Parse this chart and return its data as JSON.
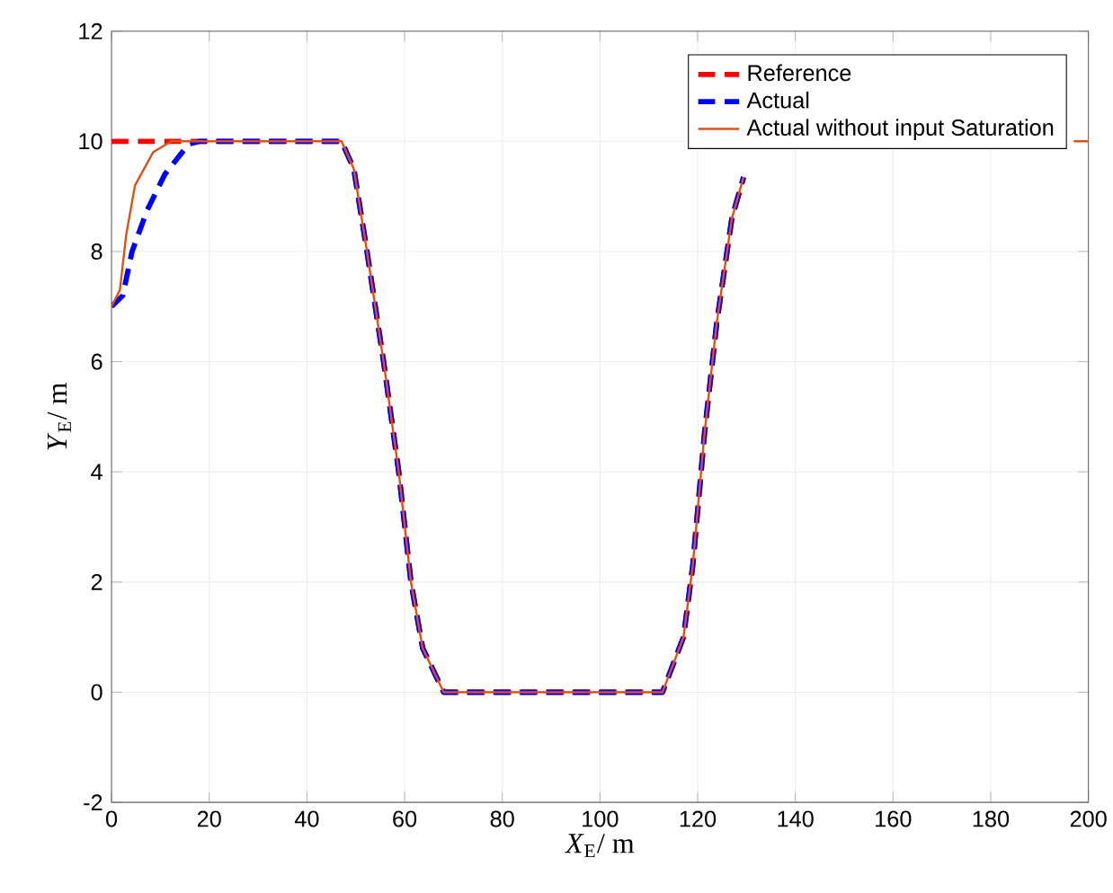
{
  "chart_data": {
    "type": "line",
    "xlabel": "*X*$_{E}$/ m",
    "ylabel": "*Y*$_{E}$/ m",
    "xlim": [
      0,
      200
    ],
    "ylim": [
      -2,
      12
    ],
    "xticks": [
      0,
      20,
      40,
      60,
      80,
      100,
      120,
      140,
      160,
      180,
      200
    ],
    "yticks": [
      -2,
      0,
      2,
      4,
      6,
      8,
      10,
      12
    ],
    "grid": true,
    "legend": "top right",
    "series": [
      {
        "name": "Reference",
        "color": "#ff0000",
        "line_style": "dashed",
        "x": [
          0,
          47.1,
          49.6,
          52.3,
          55.7,
          58.8,
          61.3,
          63.7,
          68,
          112.8,
          117.1,
          119,
          121.4,
          123.9,
          127,
          129.4
        ],
        "values": [
          10,
          10,
          9.5,
          8,
          6,
          4,
          2,
          0.8,
          0,
          0,
          1,
          2.3,
          4.7,
          6.7,
          8.6,
          9.35
        ]
      },
      {
        "name": "Actual",
        "color": "#0000ff",
        "line_style": "dashed",
        "x": [
          0,
          2.3,
          4.2,
          7.3,
          10.9,
          15.8,
          18,
          47.1,
          49.6,
          52.3,
          55.7,
          58.8,
          61.3,
          63.7,
          68,
          112.8,
          117.1,
          119,
          121.4,
          123.9,
          127,
          129.4
        ],
        "values": [
          7,
          7.2,
          8,
          8.75,
          9.4,
          9.95,
          10,
          10,
          9.5,
          8,
          6,
          4,
          2,
          0.8,
          0,
          0,
          1,
          2.3,
          4.7,
          6.7,
          8.6,
          9.35
        ]
      },
      {
        "name": "Actual without input Saturation",
        "color": "#d95319",
        "line_style": "solid",
        "x": [
          0,
          1.7,
          3,
          4.8,
          8.5,
          12.2,
          47.1,
          49.6,
          52.3,
          55.7,
          58.8,
          61.3,
          63.7,
          68,
          112.8,
          117.1,
          119,
          121.4,
          123.9,
          127,
          129.4,
          160,
          197,
          200
        ],
        "values": [
          7,
          7.3,
          8.3,
          9.2,
          9.8,
          10,
          10,
          9.5,
          8,
          6,
          4,
          2,
          0.8,
          0,
          0,
          1,
          2.3,
          4.7,
          6.7,
          8.6,
          9.35,
          null,
          10,
          10
        ]
      }
    ]
  }
}
